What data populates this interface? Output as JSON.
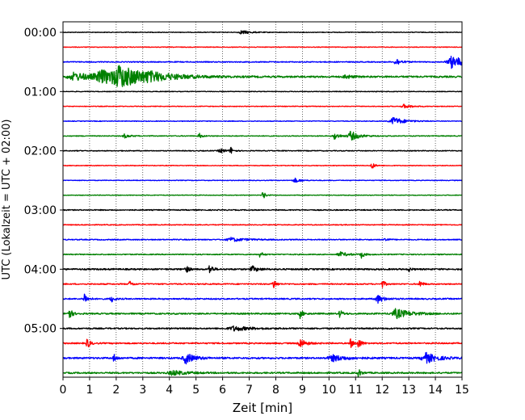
{
  "chart_data": {
    "type": "line",
    "title": "",
    "xlabel": "Zeit  [min]",
    "ylabel": "UTC (Lokalzeit = UTC + 02:00)",
    "xlim": [
      0,
      15
    ],
    "x_ticks": [
      "0",
      "1",
      "2",
      "3",
      "4",
      "5",
      "6",
      "7",
      "8",
      "9",
      "10",
      "11",
      "12",
      "13",
      "14",
      "15"
    ],
    "y_tick_labels": [
      "00:00",
      "01:00",
      "02:00",
      "03:00",
      "04:00",
      "05:00"
    ],
    "trace_interval_min": 15,
    "trace_count": 24,
    "color_cycle": [
      "#000000",
      "#ff0000",
      "#0000ff",
      "#008000"
    ],
    "grid": "vertical dotted lines at each minute",
    "traces": [
      {
        "start": "00:00",
        "color": "#000000",
        "noise": 0.4,
        "events": [
          {
            "t": 6.7,
            "a": 2.5,
            "d": 0.3
          }
        ]
      },
      {
        "start": "00:15",
        "color": "#ff0000",
        "noise": 0.4,
        "events": []
      },
      {
        "start": "00:30",
        "color": "#0000ff",
        "noise": 0.6,
        "events": [
          {
            "t": 12.5,
            "a": 6,
            "d": 0.15
          },
          {
            "t": 14.6,
            "a": 8,
            "d": 0.5
          }
        ]
      },
      {
        "start": "00:45",
        "color": "#008000",
        "noise": 1.0,
        "events": [
          {
            "t": 0.4,
            "a": 5,
            "d": 0.8
          },
          {
            "t": 1.4,
            "a": 8,
            "d": 0.6
          },
          {
            "t": 2.1,
            "a": 13,
            "d": 0.9
          },
          {
            "t": 3.2,
            "a": 3,
            "d": 1.2
          },
          {
            "t": 10.6,
            "a": 3,
            "d": 0.2
          }
        ]
      },
      {
        "start": "01:00",
        "color": "#000000",
        "noise": 0.4,
        "events": []
      },
      {
        "start": "01:15",
        "color": "#ff0000",
        "noise": 0.4,
        "events": [
          {
            "t": 12.8,
            "a": 2.5,
            "d": 0.3
          }
        ]
      },
      {
        "start": "01:30",
        "color": "#0000ff",
        "noise": 0.4,
        "events": [
          {
            "t": 12.4,
            "a": 5,
            "d": 0.4
          }
        ]
      },
      {
        "start": "01:45",
        "color": "#008000",
        "noise": 0.5,
        "events": [
          {
            "t": 2.3,
            "a": 2.5,
            "d": 0.2
          },
          {
            "t": 5.1,
            "a": 4,
            "d": 0.1
          },
          {
            "t": 10.2,
            "a": 4,
            "d": 0.2
          },
          {
            "t": 10.8,
            "a": 6,
            "d": 0.3
          }
        ]
      },
      {
        "start": "02:00",
        "color": "#000000",
        "noise": 0.5,
        "events": [
          {
            "t": 5.9,
            "a": 3,
            "d": 0.2
          },
          {
            "t": 6.3,
            "a": 5,
            "d": 0.08
          }
        ]
      },
      {
        "start": "02:15",
        "color": "#ff0000",
        "noise": 0.4,
        "events": [
          {
            "t": 11.6,
            "a": 5,
            "d": 0.1
          }
        ]
      },
      {
        "start": "02:30",
        "color": "#0000ff",
        "noise": 0.4,
        "events": [
          {
            "t": 8.7,
            "a": 3,
            "d": 0.2
          }
        ]
      },
      {
        "start": "02:45",
        "color": "#008000",
        "noise": 0.4,
        "events": [
          {
            "t": 7.5,
            "a": 7,
            "d": 0.08
          }
        ]
      },
      {
        "start": "03:00",
        "color": "#000000",
        "noise": 0.6,
        "events": []
      },
      {
        "start": "03:15",
        "color": "#ff0000",
        "noise": 0.5,
        "events": []
      },
      {
        "start": "03:30",
        "color": "#0000ff",
        "noise": 0.6,
        "events": [
          {
            "t": 6.3,
            "a": 2.5,
            "d": 0.5
          },
          {
            "t": 12.1,
            "a": 3,
            "d": 0.1
          }
        ]
      },
      {
        "start": "03:45",
        "color": "#008000",
        "noise": 0.6,
        "events": [
          {
            "t": 7.4,
            "a": 4,
            "d": 0.1
          },
          {
            "t": 10.4,
            "a": 3,
            "d": 0.3
          },
          {
            "t": 11.2,
            "a": 5,
            "d": 0.1
          }
        ]
      },
      {
        "start": "04:00",
        "color": "#000000",
        "noise": 0.9,
        "events": [
          {
            "t": 4.6,
            "a": 6,
            "d": 0.1
          },
          {
            "t": 5.5,
            "a": 7,
            "d": 0.1
          },
          {
            "t": 7.1,
            "a": 4,
            "d": 0.2
          },
          {
            "t": 13.0,
            "a": 3,
            "d": 0.08
          }
        ]
      },
      {
        "start": "04:15",
        "color": "#ff0000",
        "noise": 0.7,
        "events": [
          {
            "t": 2.5,
            "a": 4,
            "d": 0.1
          },
          {
            "t": 7.9,
            "a": 7,
            "d": 0.1
          },
          {
            "t": 12.0,
            "a": 5,
            "d": 0.1
          },
          {
            "t": 13.4,
            "a": 5,
            "d": 0.1
          }
        ]
      },
      {
        "start": "04:30",
        "color": "#0000ff",
        "noise": 0.8,
        "events": [
          {
            "t": 0.8,
            "a": 8,
            "d": 0.1
          },
          {
            "t": 1.8,
            "a": 5,
            "d": 0.1
          },
          {
            "t": 11.8,
            "a": 6,
            "d": 0.2
          }
        ]
      },
      {
        "start": "04:45",
        "color": "#008000",
        "noise": 0.9,
        "events": [
          {
            "t": 0.2,
            "a": 10,
            "d": 0.1
          },
          {
            "t": 8.9,
            "a": 6,
            "d": 0.1
          },
          {
            "t": 10.4,
            "a": 5,
            "d": 0.1
          },
          {
            "t": 12.5,
            "a": 6,
            "d": 0.5
          }
        ]
      },
      {
        "start": "05:00",
        "color": "#000000",
        "noise": 0.8,
        "events": [
          {
            "t": 6.4,
            "a": 3,
            "d": 0.6
          }
        ]
      },
      {
        "start": "05:15",
        "color": "#ff0000",
        "noise": 0.8,
        "events": [
          {
            "t": 0.9,
            "a": 7,
            "d": 0.1
          },
          {
            "t": 8.9,
            "a": 6,
            "d": 0.2
          },
          {
            "t": 10.8,
            "a": 6,
            "d": 0.1
          },
          {
            "t": 11.1,
            "a": 7,
            "d": 0.1
          }
        ]
      },
      {
        "start": "05:30",
        "color": "#0000ff",
        "noise": 1.0,
        "events": [
          {
            "t": 1.9,
            "a": 5,
            "d": 0.1
          },
          {
            "t": 4.6,
            "a": 7,
            "d": 0.3
          },
          {
            "t": 10.1,
            "a": 4,
            "d": 0.5
          },
          {
            "t": 13.6,
            "a": 7,
            "d": 0.4
          }
        ]
      },
      {
        "start": "05:45",
        "color": "#008000",
        "noise": 0.9,
        "events": [
          {
            "t": 4.1,
            "a": 3,
            "d": 0.5
          },
          {
            "t": 11.1,
            "a": 5,
            "d": 0.1
          }
        ]
      }
    ]
  }
}
